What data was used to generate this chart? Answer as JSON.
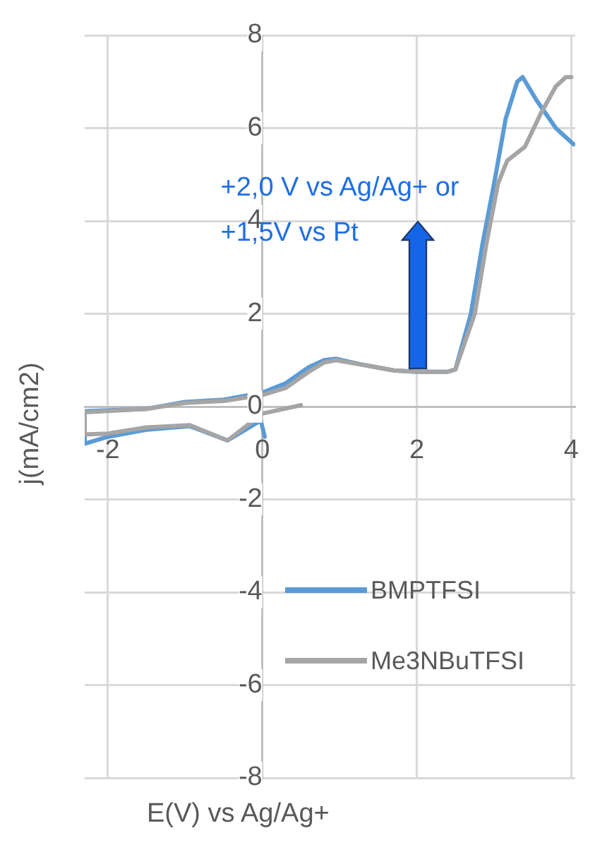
{
  "chart_data": {
    "type": "line",
    "xlabel": "E(V) vs Ag/Ag+",
    "ylabel": "j(mA/cm2)",
    "xlim": [
      -2.3,
      4.05
    ],
    "xticks": [
      -2,
      0,
      2,
      4
    ],
    "ylim": [
      -8,
      8
    ],
    "yticks": [
      -8,
      -6,
      -4,
      -2,
      0,
      2,
      4,
      6,
      8
    ],
    "grid": true,
    "legend": "bottom right",
    "marker": "none",
    "line_style": "solid",
    "annotations": [
      "+2,0 V vs Ag/Ag+ or\n+1,5V vs Pt"
    ],
    "series": [
      {
        "name": "BMPTFSI",
        "color": "#5b9bd5",
        "x": [
          0.03,
          -0.02,
          -0.45,
          -0.94,
          -1.5,
          -2.0,
          -2.3,
          -2.3,
          -1.5,
          -1.0,
          -0.5,
          0,
          0.3,
          0.6,
          0.8,
          0.95,
          1.3,
          1.7,
          2.0,
          2.4,
          2.5,
          2.7,
          2.85,
          3.0,
          3.15,
          3.3,
          3.37,
          3.55,
          3.8,
          4.03
        ],
        "values": [
          -0.65,
          -0.3,
          -0.73,
          -0.42,
          -0.5,
          -0.65,
          -0.8,
          -0.1,
          -0.05,
          0.1,
          0.15,
          0.3,
          0.5,
          0.85,
          1.0,
          1.03,
          0.9,
          0.78,
          0.75,
          0.75,
          0.8,
          2.0,
          3.5,
          4.8,
          6.2,
          7.0,
          7.1,
          6.6,
          6.0,
          5.65
        ]
      },
      {
        "name": "Me3NBuTFSI",
        "color": "#a5a5a5",
        "x": [
          0.5,
          0,
          -0.45,
          -0.94,
          -1.5,
          -2.0,
          -2.3,
          -2.3,
          -1.5,
          -1.0,
          -0.5,
          0,
          0.3,
          0.6,
          0.8,
          0.95,
          1.3,
          1.7,
          2.0,
          2.4,
          2.5,
          2.75,
          2.9,
          3.05,
          3.17,
          3.4,
          3.6,
          3.8,
          3.93,
          4.0
        ],
        "values": [
          0.03,
          -0.15,
          -0.73,
          -0.4,
          -0.45,
          -0.58,
          -0.6,
          -0.12,
          -0.05,
          0.08,
          0.12,
          0.25,
          0.4,
          0.75,
          0.95,
          1.0,
          0.9,
          0.78,
          0.75,
          0.75,
          0.8,
          2.0,
          3.5,
          4.8,
          5.3,
          5.6,
          6.3,
          6.9,
          7.1,
          7.1
        ]
      }
    ]
  }
}
